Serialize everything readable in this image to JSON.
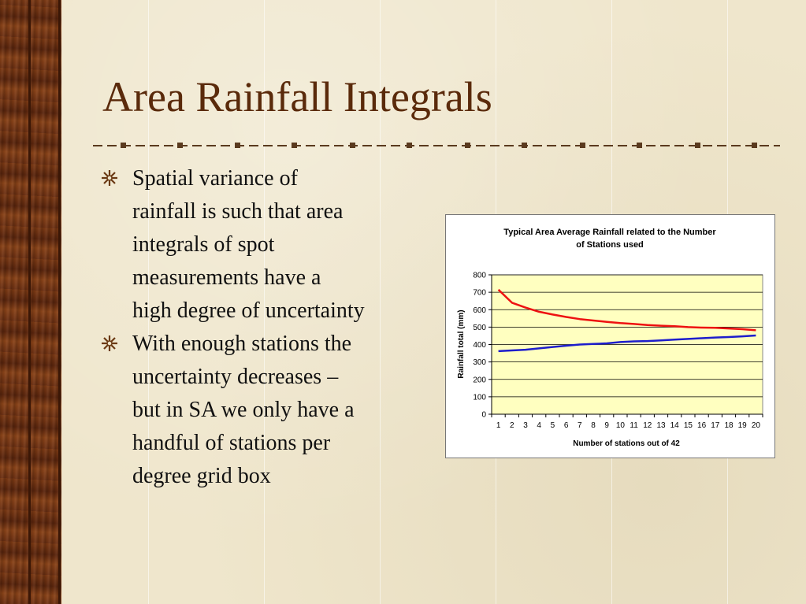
{
  "slide": {
    "title": "Area Rainfall Integrals",
    "bullets": [
      {
        "lines": [
          "Spatial variance of",
          "rainfall is such that area",
          "integrals of spot",
          "measurements have a",
          "high degree of uncertainty"
        ]
      },
      {
        "lines": [
          "With enough stations the",
          "uncertainty decreases –",
          "but in SA we only have a",
          "handful of stations per",
          "degree grid box"
        ]
      }
    ]
  },
  "colors": {
    "title": "#5a2a0b",
    "plot_bg": "#ffffc0",
    "series_red": "#ee1111",
    "series_blue": "#1d1dcc"
  },
  "chart_data": {
    "type": "line",
    "title_lines": [
      "Typical Area Average Rainfall related to the Number",
      "of Stations used"
    ],
    "xlabel": "Number of stations out of 42",
    "ylabel": "Rainfall total (mm)",
    "x": [
      1,
      2,
      3,
      4,
      5,
      6,
      7,
      8,
      9,
      10,
      11,
      12,
      13,
      14,
      15,
      16,
      17,
      18,
      19,
      20
    ],
    "ylim": [
      0,
      800
    ],
    "yticks": [
      0,
      100,
      200,
      300,
      400,
      500,
      600,
      700,
      800
    ],
    "grid": true,
    "series": [
      {
        "color": "#ee1111",
        "values": [
          715,
          640,
          612,
          588,
          572,
          558,
          546,
          538,
          530,
          523,
          518,
          512,
          508,
          505,
          500,
          497,
          496,
          492,
          488,
          482
        ]
      },
      {
        "color": "#1d1dcc",
        "values": [
          362,
          366,
          370,
          378,
          386,
          393,
          400,
          403,
          407,
          414,
          418,
          420,
          424,
          428,
          432,
          436,
          440,
          443,
          447,
          452
        ]
      }
    ]
  }
}
